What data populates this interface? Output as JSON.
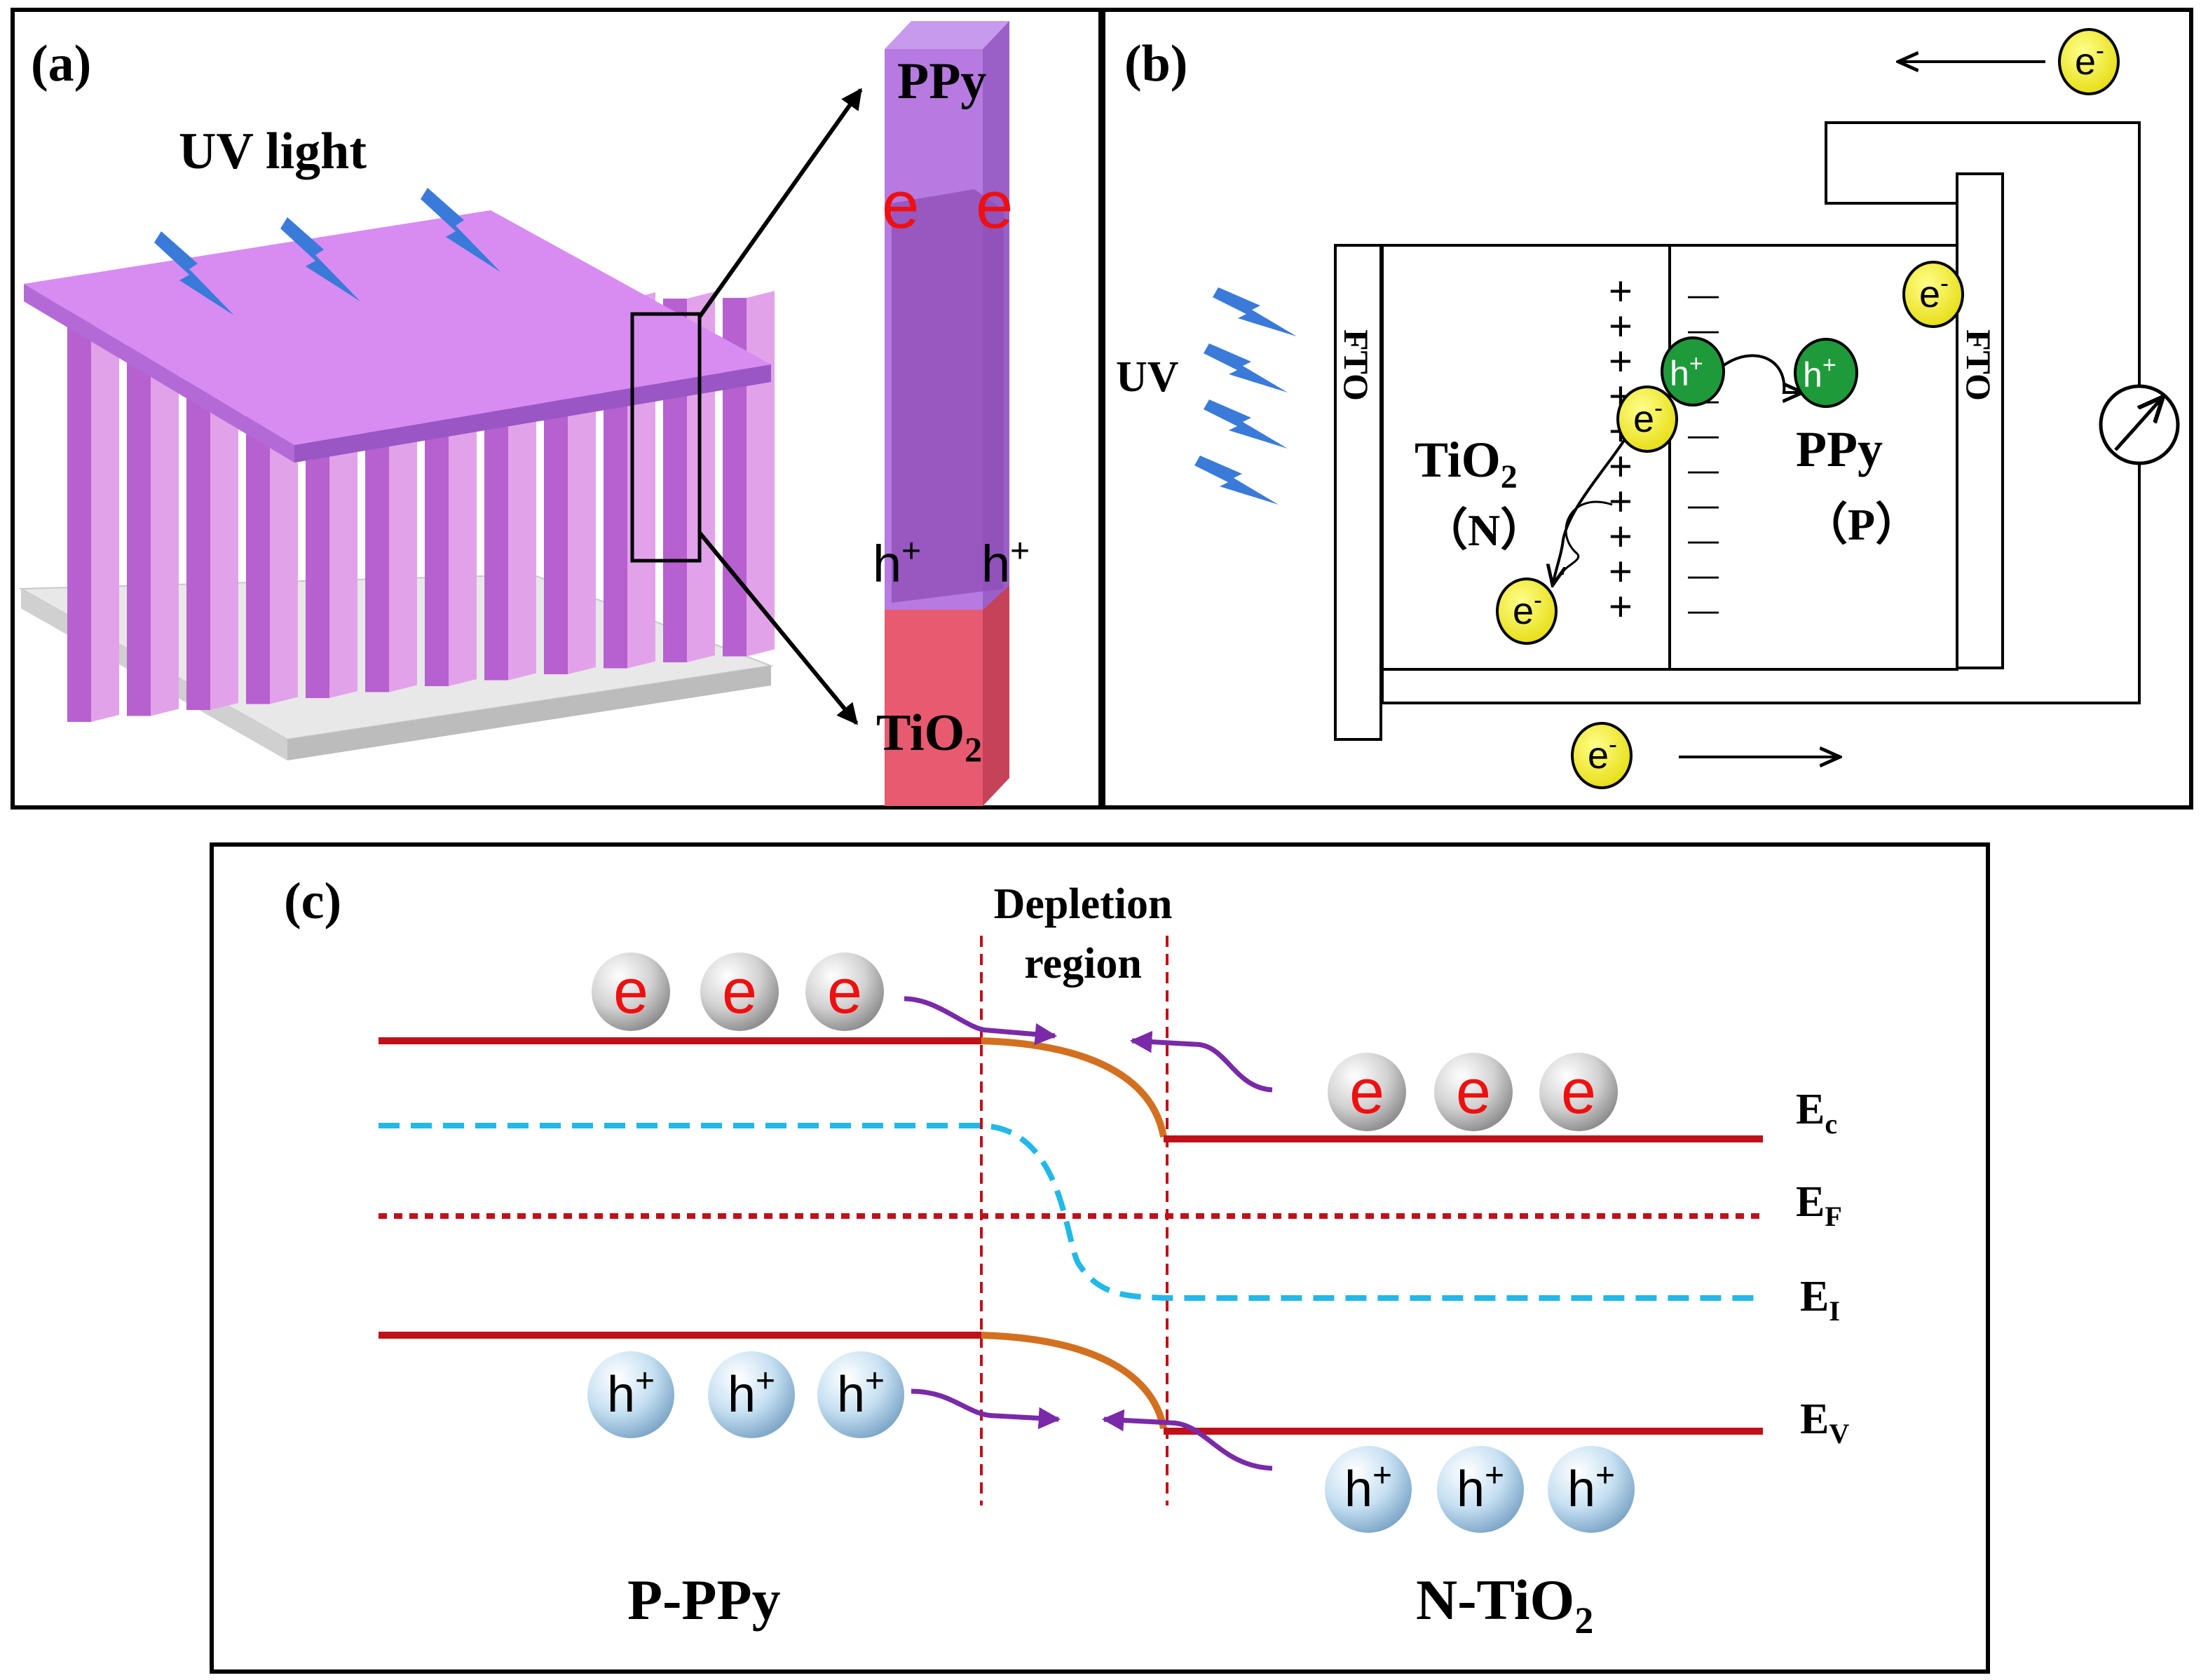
{
  "panel_a": {
    "label": "(a)",
    "uv_label": "UV light",
    "ppy_label": "PPy",
    "tio2_label": "TiO",
    "tio2_sub": "2",
    "electron": "e",
    "hole": "h",
    "hole_sup": "+"
  },
  "panel_b": {
    "label": "(b)",
    "uv_label": "UV",
    "fto_left": "FTO",
    "fto_right": "FTO",
    "tio2_label": "TiO",
    "tio2_sub": "2",
    "n_label": "（N）",
    "ppy_label": "PPy",
    "p_label": "（P）",
    "electron": "e",
    "electron_sup": "-",
    "hole": "h",
    "hole_sup": "+",
    "plus": "+",
    "minus": "—"
  },
  "panel_c": {
    "label": "(c)",
    "depletion_line1": "Depletion",
    "depletion_line2": "region",
    "electron": "e",
    "hole": "h",
    "hole_sup": "+",
    "ec_main": "E",
    "ec_sub": "c",
    "ef_main": "E",
    "ef_sub": "F",
    "ei_main": "E",
    "ei_sub": "I",
    "ev_main": "E",
    "ev_sub": "V",
    "p_side_label": "P-PPy",
    "n_side_prefix": "N-TiO",
    "n_side_sub": "2"
  },
  "colors": {
    "band_red": "#c0101a",
    "band_orange": "#d27020",
    "fermi_intrinsic": "#22b8e8",
    "arrow_purple": "#7a2aa8",
    "electron_yellow": "#f3ee20",
    "hole_green": "#1e9a3a",
    "lightning_blue": "#3a7ad8",
    "ppy_purple": "#a070d8",
    "tio2_pink": "#e8607a"
  }
}
